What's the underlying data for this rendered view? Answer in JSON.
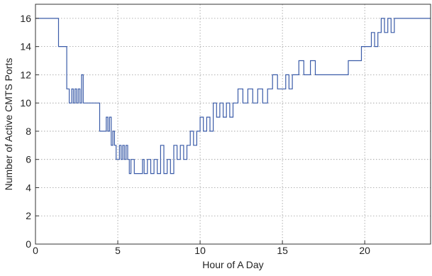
{
  "chart_data": {
    "type": "line",
    "title": "",
    "xlabel": "Hour of A Day",
    "ylabel": "Number of Active CMTS Ports",
    "xlim": [
      0,
      24
    ],
    "ylim": [
      0,
      17
    ],
    "xticks": [
      0,
      5,
      10,
      15,
      20
    ],
    "yticks": [
      0,
      2,
      4,
      6,
      8,
      10,
      12,
      14,
      16
    ],
    "grid": true,
    "line_color": "#3a5ba8",
    "series": [
      {
        "step": true,
        "x": [
          0,
          1.4,
          1.9,
          2.05,
          2.2,
          2.3,
          2.4,
          2.5,
          2.6,
          2.7,
          2.8,
          2.9,
          3.1,
          3.9,
          4.3,
          4.4,
          4.5,
          4.6,
          4.7,
          4.8,
          4.9,
          5.1,
          5.2,
          5.3,
          5.4,
          5.5,
          5.6,
          5.7,
          5.8,
          6.0,
          6.3,
          6.5,
          6.6,
          6.8,
          7.0,
          7.2,
          7.4,
          7.6,
          7.8,
          8.0,
          8.2,
          8.4,
          8.6,
          8.8,
          9.0,
          9.2,
          9.4,
          9.6,
          9.8,
          10.0,
          10.2,
          10.4,
          10.6,
          10.8,
          11.0,
          11.2,
          11.4,
          11.6,
          11.8,
          12.0,
          12.3,
          12.6,
          12.9,
          13.2,
          13.5,
          13.8,
          14.1,
          14.4,
          14.7,
          15.0,
          15.2,
          15.4,
          15.6,
          15.8,
          16.0,
          16.3,
          16.7,
          17.0,
          17.5,
          19.0,
          19.5,
          19.8,
          20.0,
          20.4,
          20.6,
          20.8,
          21.0,
          21.2,
          21.4,
          21.6,
          21.8,
          22.0,
          22.5,
          24.0
        ],
        "y": [
          16,
          14,
          11,
          10,
          11,
          10,
          11,
          10,
          11,
          10,
          12,
          10,
          10,
          8,
          9,
          8,
          9,
          7,
          8,
          7,
          6,
          7,
          6,
          7,
          6,
          7,
          6,
          5,
          6,
          5,
          5,
          6,
          5,
          6,
          5,
          6,
          5,
          7,
          5,
          6,
          5,
          7,
          6,
          7,
          6,
          7,
          8,
          7,
          8,
          9,
          8,
          9,
          8,
          10,
          9,
          10,
          9,
          10,
          9,
          10,
          11,
          10,
          11,
          10,
          11,
          10,
          11,
          12,
          11,
          11,
          12,
          11,
          12,
          12,
          13,
          12,
          13,
          12,
          12,
          13,
          13,
          14,
          14,
          15,
          14,
          15,
          16,
          15,
          16,
          15,
          16,
          16,
          16,
          16
        ]
      }
    ]
  }
}
